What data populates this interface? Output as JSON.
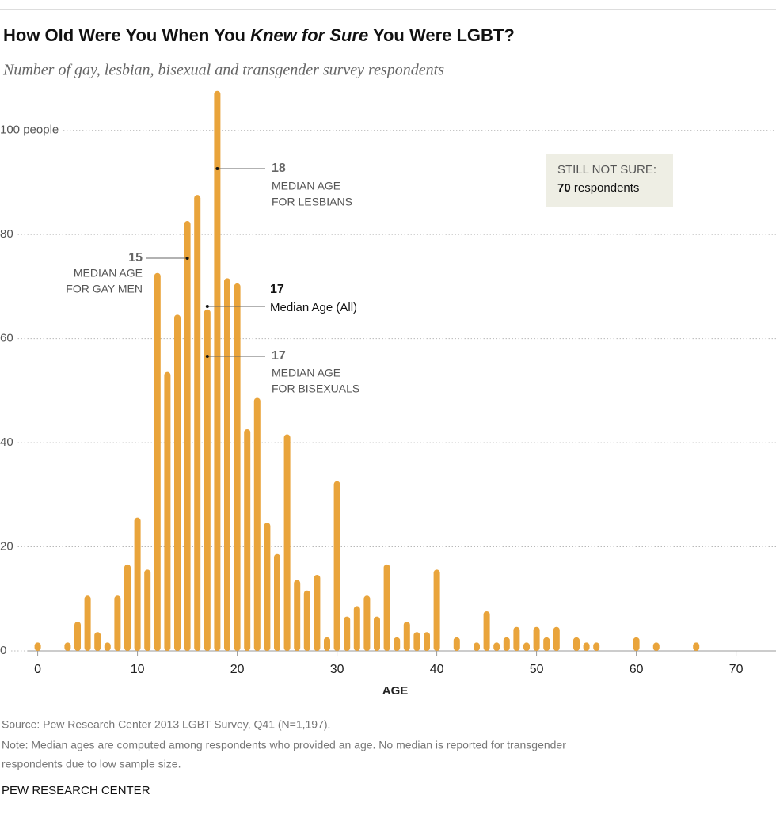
{
  "chart_data": {
    "type": "bar",
    "title": [
      "How Old Were You When You ",
      "Knew for Sure",
      " You Were LGBT?"
    ],
    "subtitle": "Number of gay, lesbian, bisexual and transgender survey respondents",
    "x_label": "AGE",
    "x": [
      0,
      3,
      4,
      5,
      6,
      7,
      8,
      9,
      10,
      11,
      12,
      13,
      14,
      15,
      16,
      17,
      18,
      19,
      20,
      21,
      22,
      23,
      24,
      25,
      26,
      27,
      28,
      29,
      30,
      31,
      32,
      33,
      34,
      35,
      36,
      37,
      38,
      39,
      40,
      42,
      44,
      45,
      46,
      47,
      48,
      49,
      50,
      51,
      52,
      54,
      55,
      56,
      60,
      62,
      66
    ],
    "values": [
      1,
      1,
      5,
      10,
      3,
      1,
      10,
      16,
      25,
      15,
      72,
      53,
      64,
      82,
      87,
      65,
      107,
      71,
      70,
      42,
      48,
      24,
      18,
      41,
      13,
      11,
      14,
      2,
      32,
      6,
      8,
      10,
      6,
      16,
      2,
      5,
      3,
      3,
      15,
      2,
      1,
      7,
      1,
      2,
      4,
      1,
      4,
      2,
      4,
      2,
      1,
      1,
      2,
      1,
      1
    ],
    "color": "#e9a43b",
    "xlim": [
      -1,
      74
    ],
    "xticks": [
      0,
      10,
      20,
      30,
      40,
      50,
      60,
      70
    ],
    "ylim": [
      0,
      110
    ],
    "yticks": [
      0,
      20,
      40,
      60,
      80,
      {
        "value": 100,
        "label": "100 people"
      }
    ],
    "grid": true,
    "annotations": [
      {
        "value": 18,
        "lines": [
          "MEDIAN AGE",
          "FOR LESBIANS"
        ]
      },
      {
        "value": 15,
        "lines": [
          "MEDIAN AGE",
          "FOR GAY MEN"
        ]
      },
      {
        "value": 17,
        "lines": [
          "Median Age (All)"
        ]
      },
      {
        "value": 17,
        "lines": [
          "MEDIAN AGE",
          "FOR BISEXUALS"
        ]
      }
    ],
    "still_not_sure": {
      "label": "STILL NOT SURE:",
      "value": 70,
      "unit": "respondents"
    },
    "source": "Source: Pew Research Center 2013 LGBT Survey, Q41 (N=1,197).",
    "note": [
      "Note: Median ages are computed among respondents who provided an age. No median is reported for transgender",
      "respondents due to low sample size."
    ],
    "credit": "PEW RESEARCH CENTER"
  }
}
